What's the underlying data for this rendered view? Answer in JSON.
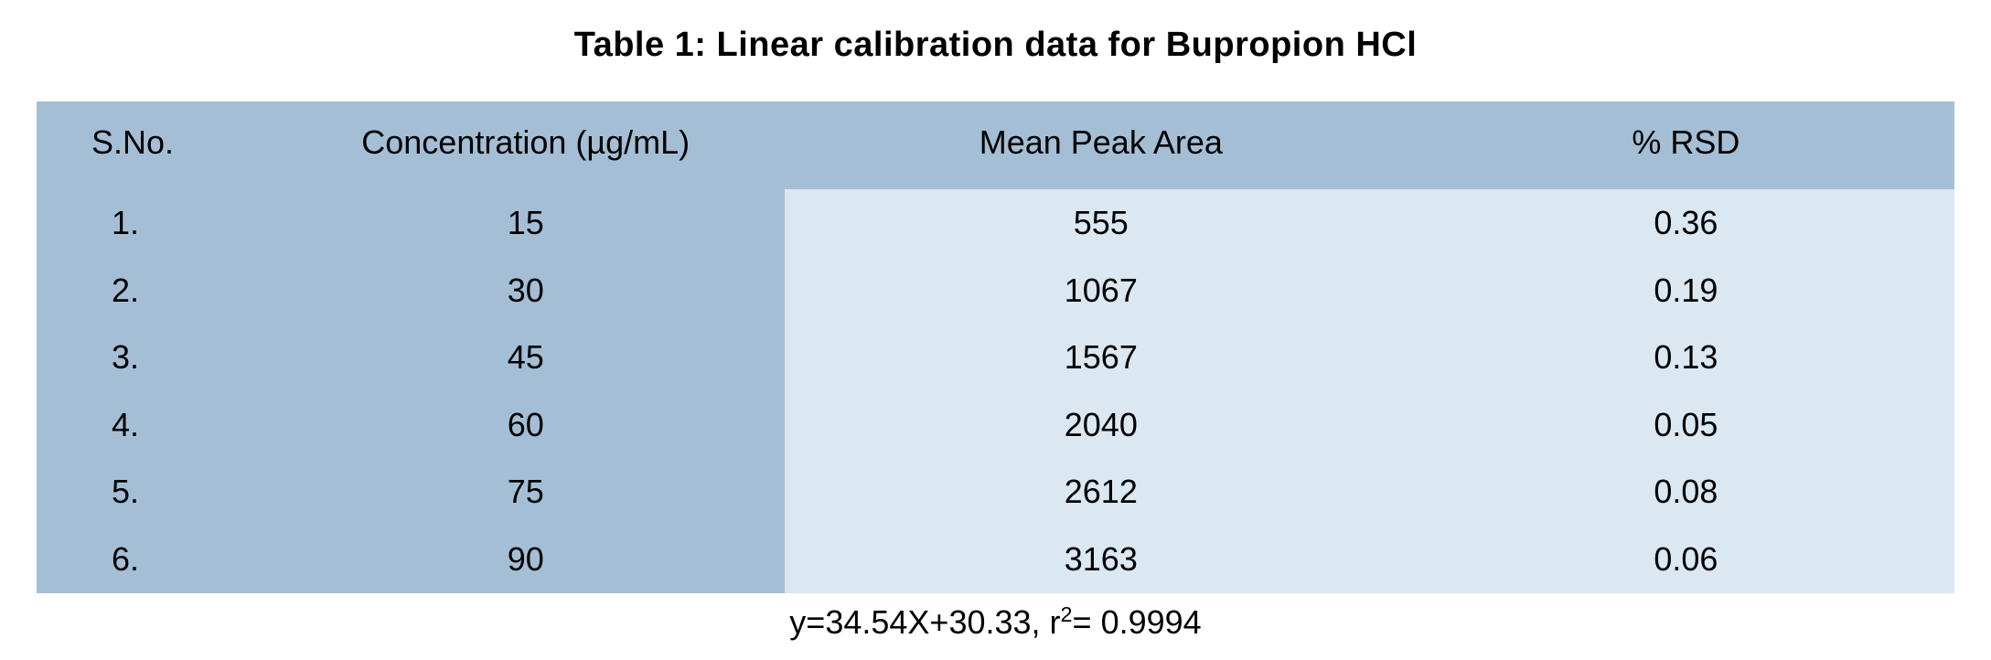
{
  "title": "Table 1: Linear calibration data for Bupropion HCl",
  "table": {
    "type": "table",
    "header_bg": "#a4bfd5",
    "body_bg_left": "#a4bfd5",
    "body_bg_right": "#dbe7f1",
    "text_color": "#000000",
    "title_fontsize_pt": 28,
    "cell_fontsize_pt": 27,
    "columns": [
      {
        "key": "sno",
        "label": "S.No.",
        "width_pct": 12,
        "align": "left"
      },
      {
        "key": "conc",
        "label": "Concentration (µg/mL)",
        "width_pct": 27,
        "align": "center"
      },
      {
        "key": "area",
        "label": "Mean Peak Area",
        "width_pct": 33,
        "align": "center"
      },
      {
        "key": "rsd",
        "label": "% RSD",
        "width_pct": 28,
        "align": "center"
      }
    ],
    "rows": [
      {
        "sno": "1.",
        "conc": "15",
        "area": "555",
        "rsd": "0.36"
      },
      {
        "sno": "2.",
        "conc": "30",
        "area": "1067",
        "rsd": "0.19"
      },
      {
        "sno": "3.",
        "conc": "45",
        "area": "1567",
        "rsd": "0.13"
      },
      {
        "sno": "4.",
        "conc": "60",
        "area": "2040",
        "rsd": "0.05"
      },
      {
        "sno": "5.",
        "conc": "75",
        "area": "2612",
        "rsd": "0.08"
      },
      {
        "sno": "6.",
        "conc": "90",
        "area": "3163",
        "rsd": "0.06"
      }
    ]
  },
  "regression": {
    "prefix": "y=34.54X+30.33, r",
    "sup": "2",
    "suffix": "= 0.9994"
  }
}
